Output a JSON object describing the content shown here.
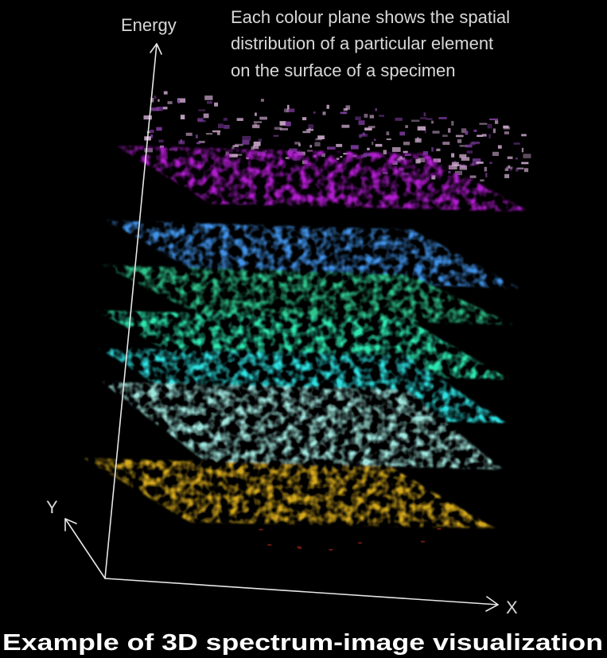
{
  "figure": {
    "axes": {
      "energy": "Energy",
      "y": "Y",
      "x": "X"
    },
    "annotation_lines": [
      "Each colour plane shows the spatial",
      "distribution of a particular element",
      "on the surface of a specimen"
    ],
    "caption": "Example of 3D spectrum-image visualization",
    "planes": [
      {
        "name": "magenta-plane",
        "color": "#b21fd0"
      },
      {
        "name": "blue-plane",
        "color": "#3f92e8"
      },
      {
        "name": "green-plane",
        "color": "#2ec48c"
      },
      {
        "name": "sea-green-plane",
        "color": "#2fe6b0"
      },
      {
        "name": "cyan-plane",
        "color": "#2fe0e0"
      },
      {
        "name": "pale-cyan-plane",
        "color": "#9ee4dc"
      },
      {
        "name": "yellow-plane",
        "color": "#d4a81c"
      }
    ],
    "colors": {
      "background": "#000000",
      "axis": "#e6e6e6",
      "caption_bar": "#000000"
    }
  }
}
